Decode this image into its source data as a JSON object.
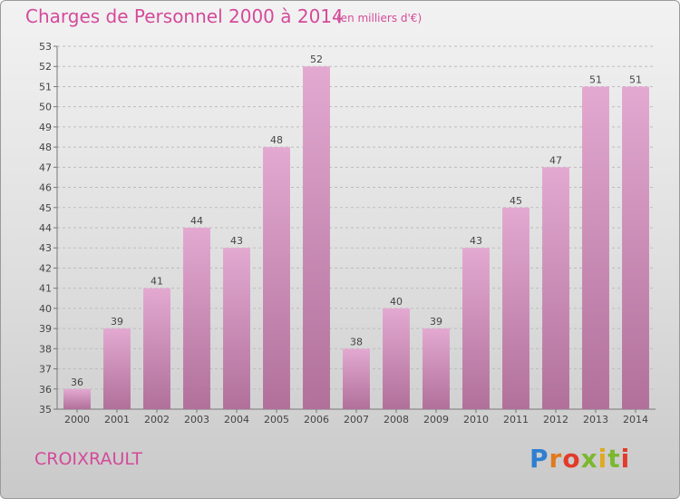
{
  "header": {
    "title": "Charges de Personnel 2000 à 2014",
    "unit": "(en milliers d'€)"
  },
  "footer": {
    "commune": "CROIXRAULT",
    "logo": "Proxiti"
  },
  "colors": {
    "bar_top": "#e3a9d1",
    "bar_bottom": "#b0709a",
    "title": "#d44a9a"
  },
  "chart_data": {
    "type": "bar",
    "title": "Charges de Personnel 2000 à 2014",
    "subtitle": "(en milliers d'€)",
    "categories": [
      "2000",
      "2001",
      "2002",
      "2003",
      "2004",
      "2005",
      "2006",
      "2007",
      "2008",
      "2009",
      "2010",
      "2011",
      "2012",
      "2013",
      "2014"
    ],
    "values": [
      36,
      39,
      41,
      44,
      43,
      48,
      52,
      38,
      40,
      39,
      43,
      45,
      47,
      51,
      51
    ],
    "ylim": [
      35,
      53
    ],
    "yticks": [
      35,
      36,
      37,
      38,
      39,
      40,
      41,
      42,
      43,
      44,
      45,
      46,
      47,
      48,
      49,
      50,
      51,
      52,
      53
    ],
    "grid": true,
    "legend": "none"
  }
}
